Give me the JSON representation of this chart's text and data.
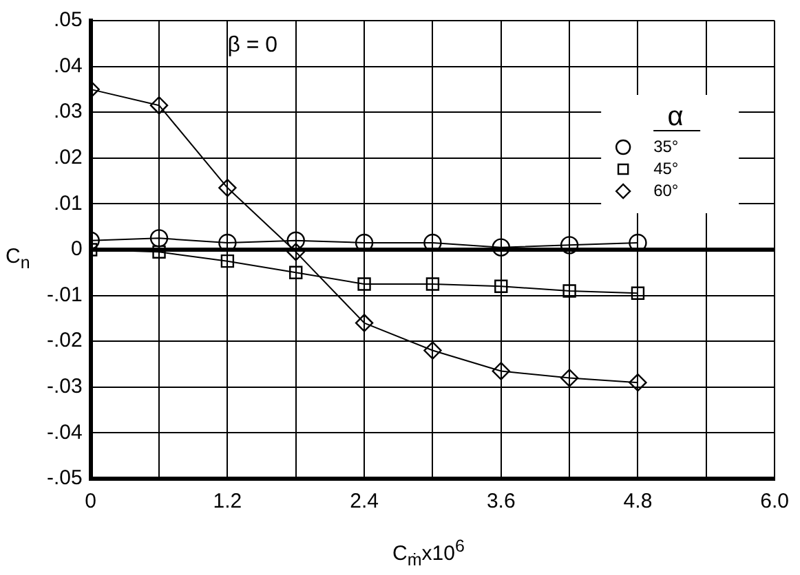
{
  "chart_data": {
    "type": "line",
    "xlabel": "C$_{ṁ}$x10$^{6}$",
    "ylabel": "C$_{n}$",
    "legend_title": "α",
    "annotations": [
      "β = 0"
    ],
    "x": [
      0,
      0.6,
      1.2,
      1.8,
      2.4,
      3.0,
      3.6,
      4.2,
      4.8
    ],
    "series": [
      {
        "name": "35°",
        "color": "#000000",
        "marker": "circle",
        "values": [
          0.002,
          0.0025,
          0.0015,
          0.002,
          0.0015,
          0.0015,
          0.0005,
          0.001,
          0.0015
        ]
      },
      {
        "name": "45°",
        "color": "#000000",
        "marker": "square",
        "values": [
          0,
          -0.0005,
          -0.0025,
          -0.005,
          -0.0075,
          -0.0075,
          -0.008,
          -0.009,
          -0.0095
        ]
      },
      {
        "name": "60°",
        "color": "#000000",
        "marker": "diamond",
        "values": [
          0.035,
          0.0315,
          0.0135,
          -0.0005,
          -0.016,
          -0.022,
          -0.0265,
          -0.028,
          -0.029
        ]
      }
    ],
    "xlim": [
      0,
      6
    ],
    "xticks": [
      0,
      {
        "value": 0.6,
        "label": null
      },
      1.2,
      {
        "value": 1.8,
        "label": null
      },
      2.4,
      {
        "value": 3.0,
        "label": null
      },
      3.6,
      {
        "value": 4.2,
        "label": null
      },
      4.8,
      {
        "value": 5.4,
        "label": null
      },
      {
        "value": 6,
        "label": "6.0"
      }
    ],
    "ylim": [
      -0.05,
      0.05
    ],
    "yticks": [
      {
        "value": -0.05,
        "label": "-.05"
      },
      {
        "value": -0.04,
        "label": "-.04"
      },
      {
        "value": -0.03,
        "label": "-.03"
      },
      {
        "value": -0.02,
        "label": "-.02"
      },
      {
        "value": -0.01,
        "label": "-.01"
      },
      0,
      {
        "value": 0.01,
        "label": ".01"
      },
      {
        "value": 0.02,
        "label": ".02"
      },
      {
        "value": 0.03,
        "label": ".03"
      },
      {
        "value": 0.04,
        "label": ".04"
      },
      {
        "value": 0.05,
        "label": ".05"
      }
    ],
    "grid": true,
    "legend": "top right",
    "line_style": "solid"
  }
}
